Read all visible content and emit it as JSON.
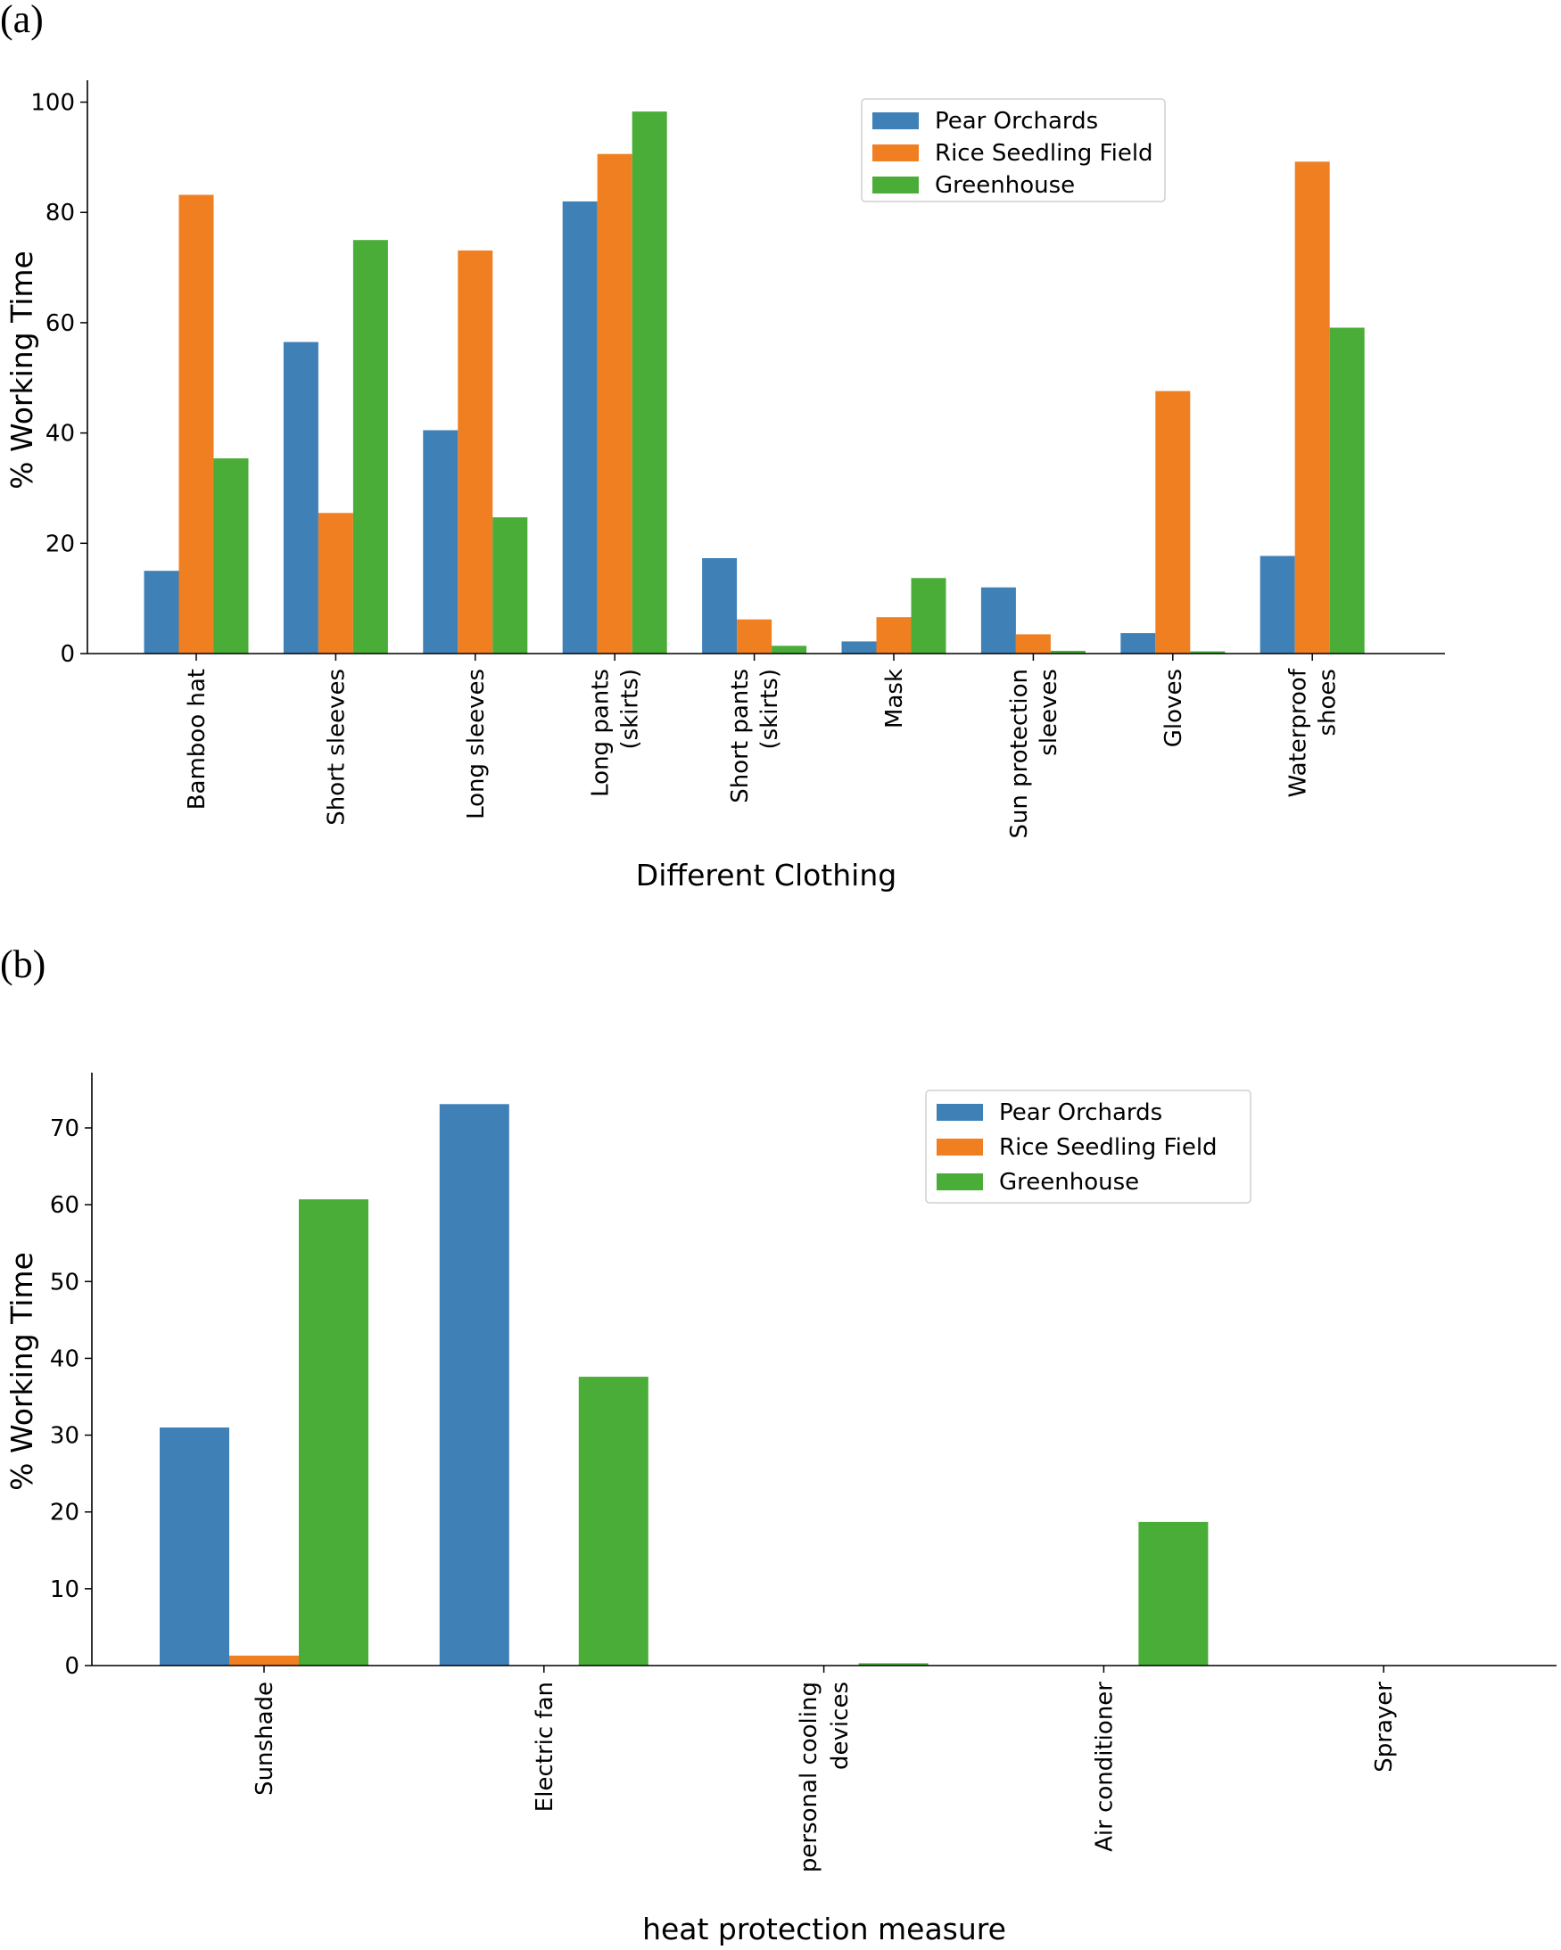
{
  "colors": {
    "pear": "#3f80b7",
    "rice": "#f07f22",
    "greenhouse": "#49ad38",
    "axis": "#000000",
    "legend_border": "#d0d0d0"
  },
  "panel_labels": [
    "(a)",
    "(b)"
  ],
  "chart_data": [
    {
      "type": "bar",
      "title": "",
      "xlabel": "Different Clothing",
      "ylabel": "% Working Time",
      "ylim": [
        0,
        103
      ],
      "yticks": [
        0,
        20,
        40,
        60,
        80,
        100
      ],
      "legend_position": "top-right",
      "categories": [
        [
          "Bamboo hat"
        ],
        [
          "Short sleeves"
        ],
        [
          "Long sleeves"
        ],
        [
          "Long pants",
          "(skirts)"
        ],
        [
          "Short pants",
          "(skirts)"
        ],
        [
          "Mask"
        ],
        [
          "Sun protection",
          "sleeves"
        ],
        [
          "Gloves"
        ],
        [
          "Waterproof",
          "shoes"
        ]
      ],
      "series": [
        {
          "name": "Pear Orchards",
          "values": [
            15.0,
            56.5,
            40.5,
            82.0,
            17.3,
            2.2,
            12.0,
            3.7,
            17.7
          ]
        },
        {
          "name": "Rice Seedling Field",
          "values": [
            83.2,
            25.5,
            73.1,
            90.6,
            6.2,
            6.6,
            3.5,
            47.6,
            89.2
          ]
        },
        {
          "name": "Greenhouse",
          "values": [
            35.4,
            75.0,
            24.7,
            98.3,
            1.4,
            13.7,
            0.5,
            0.4,
            59.1
          ]
        }
      ]
    },
    {
      "type": "bar",
      "title": "",
      "xlabel": "heat protection measure",
      "ylabel": "% Working Time",
      "ylim": [
        0,
        76.5
      ],
      "yticks": [
        0,
        10,
        20,
        30,
        40,
        50,
        60,
        70
      ],
      "legend_position": "top-right",
      "categories": [
        [
          "Sunshade"
        ],
        [
          "Electric fan"
        ],
        [
          "personal cooling",
          "devices"
        ],
        [
          "Air conditioner"
        ],
        [
          "Sprayer"
        ]
      ],
      "series": [
        {
          "name": "Pear Orchards",
          "values": [
            31.0,
            73.1,
            0,
            0,
            0
          ]
        },
        {
          "name": "Rice Seedling Field",
          "values": [
            1.3,
            0,
            0,
            0,
            0
          ]
        },
        {
          "name": "Greenhouse",
          "values": [
            60.7,
            37.6,
            0.3,
            18.7,
            0
          ]
        }
      ]
    }
  ]
}
